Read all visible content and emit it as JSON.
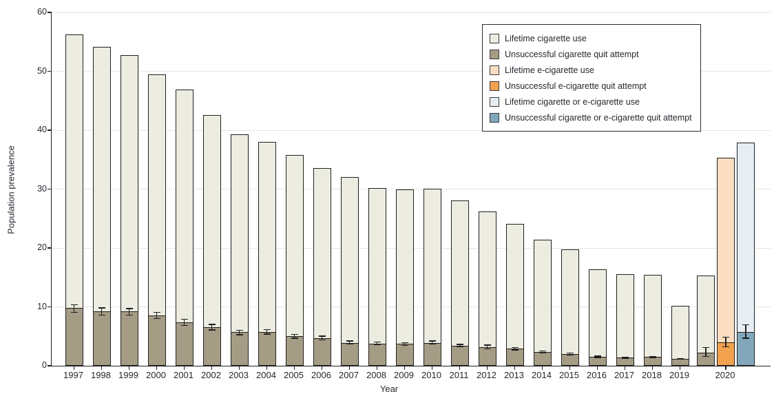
{
  "chart_data": {
    "type": "bar",
    "title": "",
    "xlabel": "Year",
    "ylabel": "Population prevalence",
    "ylim": [
      0,
      60
    ],
    "yticks": [
      0,
      10,
      20,
      30,
      40,
      50,
      60
    ],
    "grid": "horizontal",
    "legend_position": "top-right",
    "categories": [
      "1997",
      "1998",
      "1999",
      "2000",
      "2001",
      "2002",
      "2003",
      "2004",
      "2005",
      "2006",
      "2007",
      "2008",
      "2009",
      "2010",
      "2011",
      "2012",
      "2013",
      "2014",
      "2015",
      "2016",
      "2017",
      "2018",
      "2019",
      "2020"
    ],
    "series": [
      {
        "name": "Lifetime cigarette use",
        "color": "#edece1",
        "values": [
          56.3,
          54.1,
          52.7,
          49.5,
          46.9,
          42.6,
          39.3,
          38.0,
          35.8,
          33.6,
          32.0,
          30.2,
          29.9,
          30.1,
          28.1,
          26.2,
          24.1,
          21.4,
          19.8,
          16.4,
          15.6,
          15.4,
          10.2,
          15.3
        ]
      },
      {
        "name": "Unsuccessful cigarette quit attempt",
        "color": "#a59c86",
        "values": [
          9.8,
          9.3,
          9.2,
          8.5,
          7.4,
          6.6,
          5.7,
          5.7,
          5.0,
          4.7,
          3.9,
          3.8,
          3.7,
          3.9,
          3.4,
          3.2,
          2.9,
          2.3,
          2.0,
          1.5,
          1.4,
          1.5,
          1.2,
          2.2
        ],
        "ci_low": [
          9.0,
          8.5,
          8.5,
          7.9,
          6.8,
          6.0,
          5.2,
          5.3,
          4.6,
          4.3,
          3.6,
          3.5,
          3.4,
          3.6,
          3.1,
          2.8,
          2.6,
          2.1,
          1.8,
          1.3,
          1.2,
          1.3,
          1.0,
          1.5
        ],
        "ci_high": [
          10.4,
          9.9,
          9.8,
          9.1,
          8.0,
          7.1,
          6.1,
          6.2,
          5.4,
          5.1,
          4.3,
          4.1,
          4.0,
          4.3,
          3.7,
          3.6,
          3.2,
          2.6,
          2.2,
          1.7,
          1.5,
          1.6,
          1.3,
          3.2
        ]
      },
      {
        "name": "Lifetime e-cigarette use",
        "color": "#fbddc1",
        "categories": [
          "2020"
        ],
        "values": [
          35.3
        ]
      },
      {
        "name": "Unsuccessful e-cigarette quit attempt",
        "color": "#f2a24f",
        "categories": [
          "2020"
        ],
        "values": [
          4.0
        ],
        "ci_low": [
          3.1
        ],
        "ci_high": [
          4.9
        ]
      },
      {
        "name": "Lifetime cigarette or e-cigarette use",
        "color": "#e7eef3",
        "categories": [
          "2020"
        ],
        "values": [
          37.9
        ]
      },
      {
        "name": "Unsuccessful cigarette or e-cigarette quit attempt",
        "color": "#82a7ba",
        "categories": [
          "2020"
        ],
        "values": [
          5.7
        ],
        "ci_low": [
          4.6
        ],
        "ci_high": [
          7.0
        ]
      }
    ]
  },
  "legend": {
    "items": [
      {
        "label": "Lifetime cigarette use",
        "color": "#edece1"
      },
      {
        "label": "Unsuccessful cigarette quit attempt",
        "color": "#a59c86"
      },
      {
        "label": "Lifetime e-cigarette use",
        "color": "#fbddc1"
      },
      {
        "label": "Unsuccessful e-cigarette quit attempt",
        "color": "#f2a24f"
      },
      {
        "label": "Lifetime cigarette or e-cigarette use",
        "color": "#e7eef3"
      },
      {
        "label": "Unsuccessful cigarette or e-cigarette quit attempt",
        "color": "#82a7ba"
      }
    ]
  },
  "axes": {
    "ylabel": "Population prevalence",
    "xlabel": "Year"
  }
}
